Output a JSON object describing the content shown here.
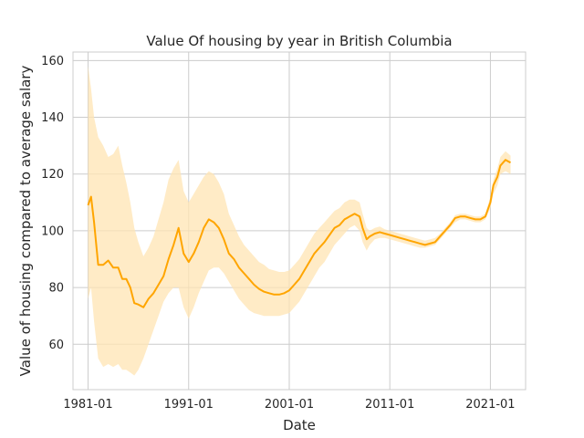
{
  "chart_data": {
    "type": "line",
    "title": "Value Of housing by year in British Columbia",
    "xlabel": "Date",
    "ylabel": "Value of housing compared to average salary",
    "xlim": [
      1979.5,
      2024.5
    ],
    "ylim": [
      44,
      163
    ],
    "xticks": [
      {
        "value": 1981.0,
        "label": "1981-01"
      },
      {
        "value": 1991.0,
        "label": "1991-01"
      },
      {
        "value": 2001.0,
        "label": "2001-01"
      },
      {
        "value": 2011.0,
        "label": "2011-01"
      },
      {
        "value": 2021.0,
        "label": "2021-01"
      }
    ],
    "yticks": [
      60,
      80,
      100,
      120,
      140,
      160
    ],
    "grid": true,
    "line_color": "#FFA500",
    "band_color": "#FFE4B3",
    "series": [
      {
        "x": [
          1981.0,
          1981.3,
          1981.6,
          1982.0,
          1982.5,
          1983.0,
          1983.5,
          1984.0,
          1984.4,
          1984.8,
          1985.2,
          1985.6,
          1986.0,
          1986.5,
          1987.0,
          1987.5,
          1988.0,
          1988.5,
          1989.0,
          1989.5,
          1990.0,
          1990.5,
          1991.0,
          1991.5,
          1992.0,
          1992.5,
          1993.0,
          1993.5,
          1994.0,
          1994.5,
          1995.0,
          1995.5,
          1996.0,
          1996.5,
          1997.0,
          1997.5,
          1998.0,
          1998.5,
          1999.0,
          1999.5,
          2000.0,
          2000.5,
          2001.0,
          2001.5,
          2002.0,
          2002.5,
          2003.0,
          2003.5,
          2004.0,
          2004.5,
          2005.0,
          2005.5,
          2006.0,
          2006.5,
          2007.0,
          2007.5,
          2008.0,
          2008.3,
          2008.7,
          2009.0,
          2009.5,
          2010.0,
          2010.5,
          2011.0,
          2011.5,
          2012.0,
          2012.5,
          2013.0,
          2013.5,
          2014.0,
          2014.5,
          2015.0,
          2015.5,
          2016.0,
          2016.5,
          2017.0,
          2017.5,
          2018.0,
          2018.5,
          2019.0,
          2019.5,
          2020.0,
          2020.5,
          2021.0,
          2021.3,
          2021.7,
          2022.0,
          2022.5,
          2023.0
        ],
        "y": [
          109,
          112,
          103,
          88,
          88,
          89.5,
          87,
          87,
          83,
          83,
          80,
          74.5,
          74,
          73,
          76,
          78,
          81,
          84,
          90,
          95,
          101,
          92,
          89,
          92,
          96,
          101,
          104,
          103,
          101,
          97,
          92,
          90,
          87,
          85,
          83,
          81,
          79.5,
          78.5,
          78,
          77.5,
          77.5,
          78,
          79,
          81,
          83,
          86,
          89,
          92,
          94,
          96,
          98.5,
          101,
          102,
          104,
          105,
          106,
          105,
          101,
          97,
          98,
          99,
          99.5,
          99,
          98.5,
          98,
          97.5,
          97,
          96.5,
          96,
          95.5,
          95,
          95.5,
          96,
          98,
          100,
          102,
          104.5,
          105,
          105,
          104.5,
          104,
          104,
          105,
          110,
          116,
          119,
          123,
          125,
          124
        ],
        "lower": [
          76,
          80,
          68,
          55,
          52,
          53,
          52,
          53,
          51,
          51,
          50,
          49,
          51,
          55,
          60,
          65,
          70,
          75,
          78,
          80,
          80,
          73,
          69,
          73,
          78,
          82,
          86,
          87,
          87,
          85,
          82,
          79,
          76,
          74,
          72,
          71,
          70.5,
          70,
          70,
          70,
          70,
          70.5,
          71,
          73,
          75,
          78,
          81,
          84,
          87,
          89,
          92,
          95,
          97,
          99,
          101,
          102,
          100,
          96,
          93,
          95,
          97,
          97.5,
          97.5,
          97,
          96.5,
          96,
          95.5,
          95,
          94.5,
          94,
          94,
          94.5,
          95,
          97,
          99,
          101,
          103,
          104,
          104,
          103.5,
          103,
          103,
          104,
          108,
          113,
          116,
          120,
          121,
          120
        ],
        "upper": [
          158,
          150,
          140,
          133,
          130,
          126,
          127,
          130,
          123,
          117,
          110,
          101,
          96,
          91,
          94,
          98,
          104,
          110,
          118,
          122,
          125,
          114,
          110,
          113,
          116,
          119,
          121,
          120,
          117,
          113,
          106,
          102,
          98,
          95,
          93,
          91,
          89,
          88,
          86.5,
          86,
          85.5,
          85.5,
          86,
          88,
          90,
          93,
          96,
          99,
          101,
          103,
          105,
          107,
          108,
          110,
          111,
          111,
          110,
          106,
          101,
          100,
          101,
          101.5,
          100.5,
          100,
          99.5,
          99,
          98.5,
          98,
          97.5,
          97,
          96.5,
          97,
          97.5,
          99,
          101,
          103,
          105.5,
          106,
          106,
          105.5,
          105,
          105,
          106,
          112,
          118,
          122,
          126,
          128,
          126.5
        ]
      }
    ]
  }
}
